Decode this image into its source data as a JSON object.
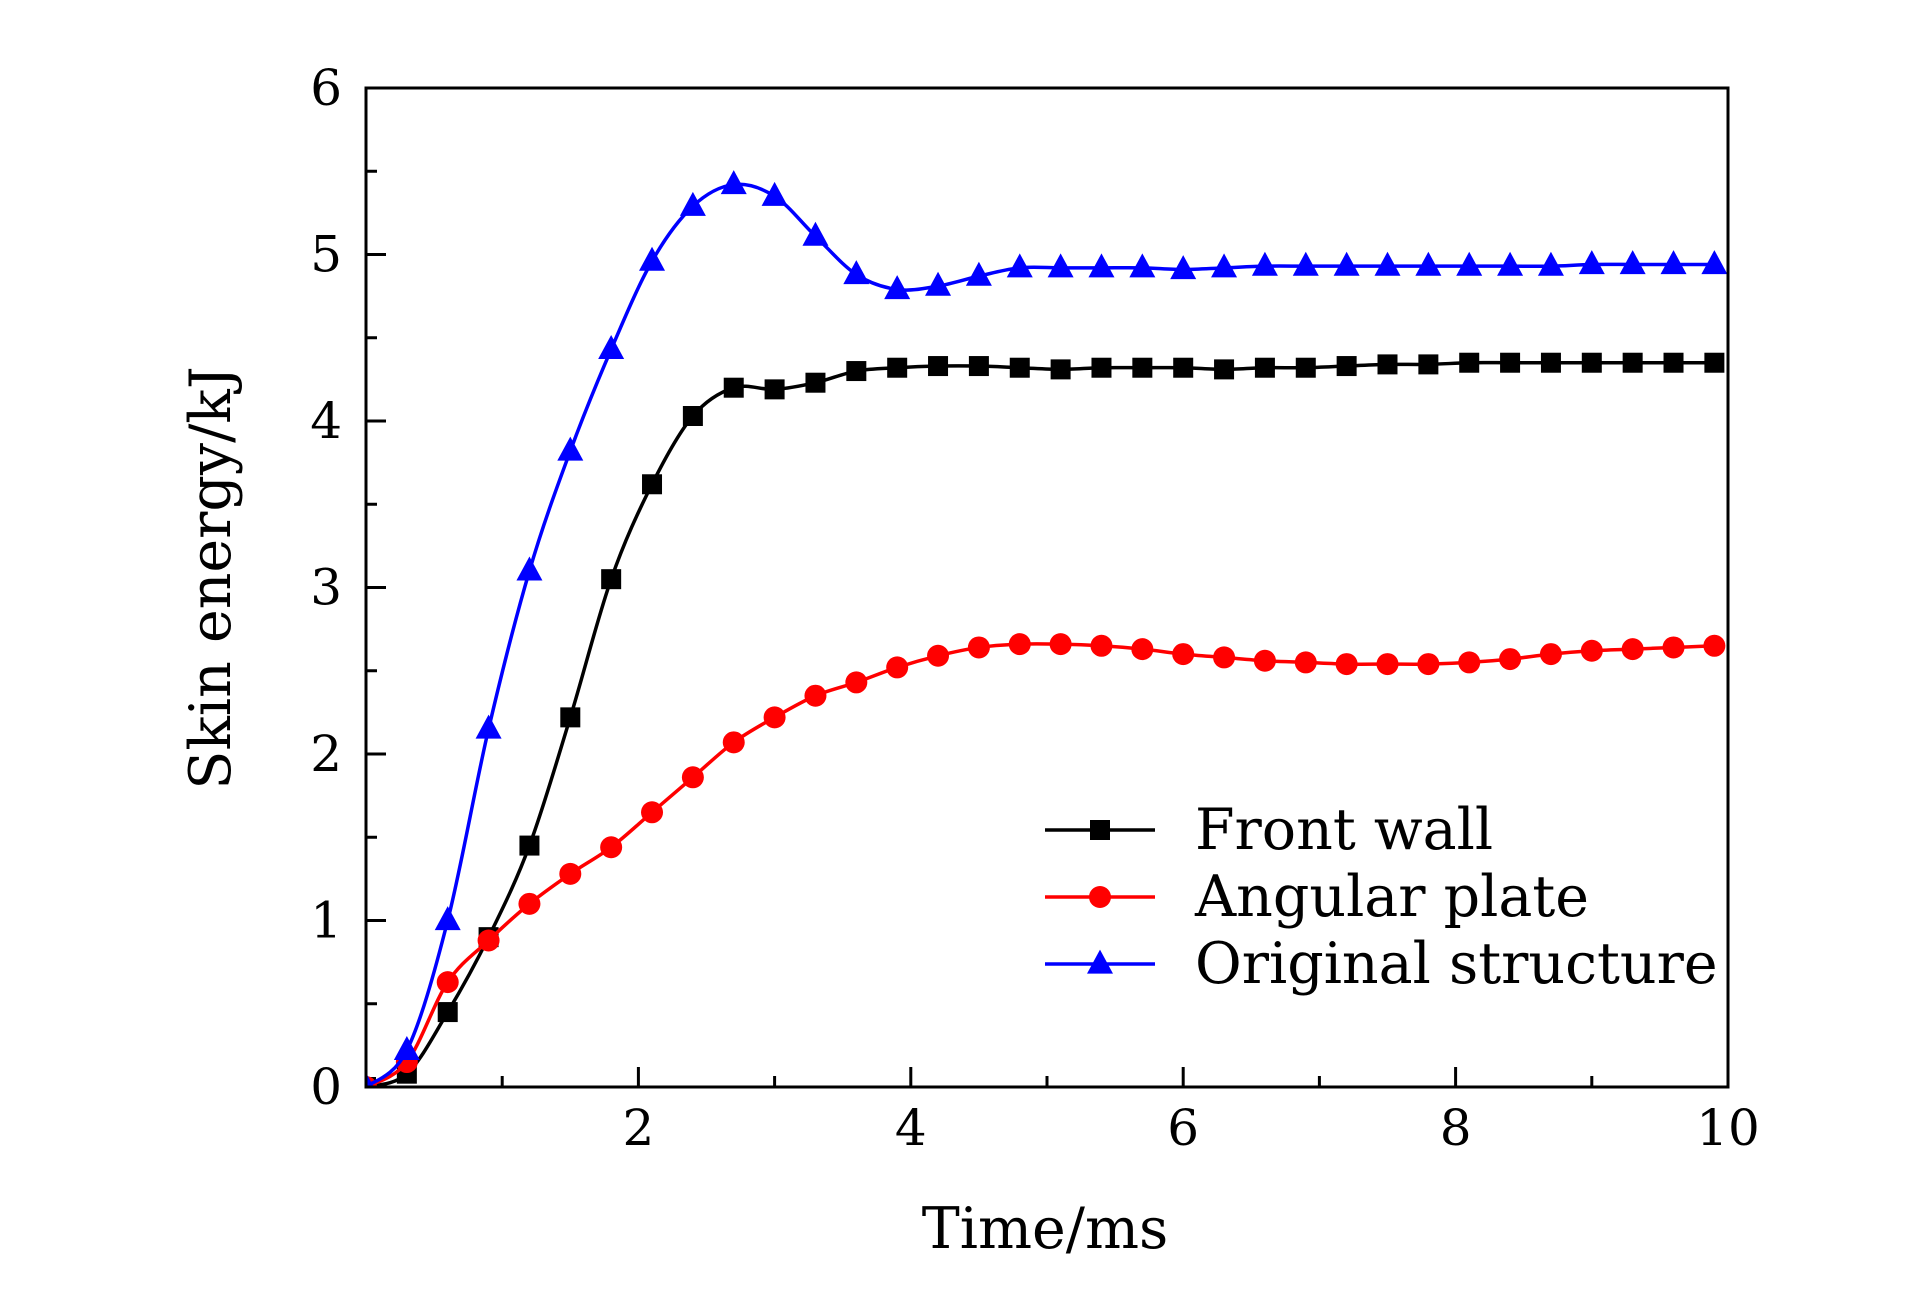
{
  "chart_data": {
    "type": "line",
    "title": "",
    "xlabel": "Time/ms",
    "ylabel": "Skin energy/kJ",
    "xlim": [
      0,
      10
    ],
    "ylim": [
      0,
      6
    ],
    "xticks": [
      2,
      4,
      6,
      8,
      10
    ],
    "yticks": [
      0,
      1,
      2,
      3,
      4,
      5,
      6
    ],
    "grid": false,
    "legend_position": "bottom-right",
    "series": [
      {
        "name": "Front wall",
        "color": "#000000",
        "marker": "square",
        "x": [
          0.0,
          0.3,
          0.6,
          0.9,
          1.2,
          1.5,
          1.8,
          2.1,
          2.4,
          2.7,
          3.0,
          3.3,
          3.6,
          3.9,
          4.2,
          4.5,
          4.8,
          5.1,
          5.4,
          5.7,
          6.0,
          6.3,
          6.6,
          6.9,
          7.2,
          7.5,
          7.8,
          8.1,
          8.4,
          8.7,
          9.0,
          9.3,
          9.6,
          9.9
        ],
        "y": [
          0.0,
          0.08,
          0.45,
          0.9,
          1.45,
          2.22,
          3.05,
          3.62,
          4.03,
          4.2,
          4.19,
          4.23,
          4.3,
          4.32,
          4.33,
          4.33,
          4.32,
          4.31,
          4.32,
          4.32,
          4.32,
          4.31,
          4.32,
          4.32,
          4.33,
          4.34,
          4.34,
          4.35,
          4.35,
          4.35,
          4.35,
          4.35,
          4.35,
          4.35
        ]
      },
      {
        "name": "Angular plate",
        "color": "#ff0000",
        "marker": "circle",
        "x": [
          0.0,
          0.3,
          0.6,
          0.9,
          1.2,
          1.5,
          1.8,
          2.1,
          2.4,
          2.7,
          3.0,
          3.3,
          3.6,
          3.9,
          4.2,
          4.5,
          4.8,
          5.1,
          5.4,
          5.7,
          6.0,
          6.3,
          6.6,
          6.9,
          7.2,
          7.5,
          7.8,
          8.1,
          8.4,
          8.7,
          9.0,
          9.3,
          9.6,
          9.9
        ],
        "y": [
          0.0,
          0.15,
          0.63,
          0.88,
          1.1,
          1.28,
          1.44,
          1.65,
          1.86,
          2.07,
          2.22,
          2.35,
          2.43,
          2.52,
          2.59,
          2.64,
          2.66,
          2.66,
          2.65,
          2.63,
          2.6,
          2.58,
          2.56,
          2.55,
          2.54,
          2.54,
          2.54,
          2.55,
          2.57,
          2.6,
          2.62,
          2.63,
          2.64,
          2.65
        ]
      },
      {
        "name": "Original structure",
        "color": "#0000ff",
        "marker": "triangle",
        "x": [
          0.0,
          0.3,
          0.6,
          0.9,
          1.2,
          1.5,
          1.8,
          2.1,
          2.4,
          2.7,
          3.0,
          3.3,
          3.6,
          3.9,
          4.2,
          4.5,
          4.8,
          5.1,
          5.4,
          5.7,
          6.0,
          6.3,
          6.6,
          6.9,
          7.2,
          7.5,
          7.8,
          8.1,
          8.4,
          8.7,
          9.0,
          9.3,
          9.6,
          9.9
        ],
        "y": [
          0.0,
          0.22,
          1.0,
          2.15,
          3.1,
          3.82,
          4.43,
          4.96,
          5.29,
          5.42,
          5.35,
          5.11,
          4.88,
          4.79,
          4.81,
          4.87,
          4.92,
          4.92,
          4.92,
          4.92,
          4.91,
          4.92,
          4.93,
          4.93,
          4.93,
          4.93,
          4.93,
          4.93,
          4.93,
          4.93,
          4.94,
          4.94,
          4.94,
          4.94
        ]
      }
    ]
  }
}
